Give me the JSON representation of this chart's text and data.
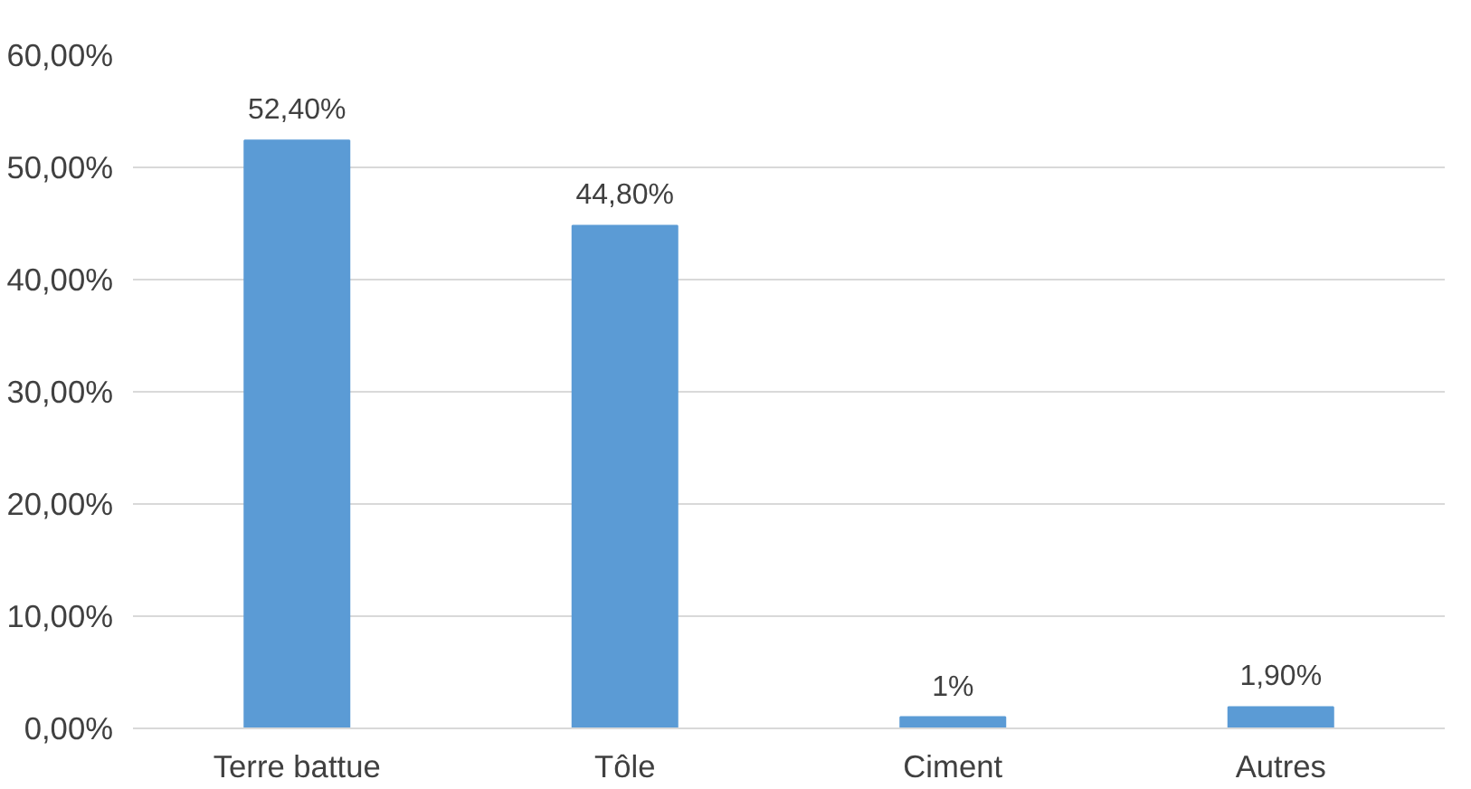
{
  "chart_data": {
    "type": "bar",
    "categories": [
      "Terre battue",
      "Tôle",
      "Ciment",
      "Autres"
    ],
    "values": [
      52.4,
      44.8,
      1,
      1.9
    ],
    "value_labels": [
      "52,40%",
      "44,80%",
      "1%",
      "1,90%"
    ],
    "color": "#5b9bd5",
    "ylim": [
      0,
      60
    ],
    "yticks": [
      {
        "value": 0,
        "label": "0,00%"
      },
      {
        "value": 10,
        "label": "10,00%"
      },
      {
        "value": 20,
        "label": "20,00%"
      },
      {
        "value": 30,
        "label": "30,00%"
      },
      {
        "value": 40,
        "label": "40,00%"
      },
      {
        "value": 50,
        "label": "50,00%"
      },
      {
        "value": 60,
        "label": "60,00%"
      }
    ],
    "grid": "y"
  }
}
